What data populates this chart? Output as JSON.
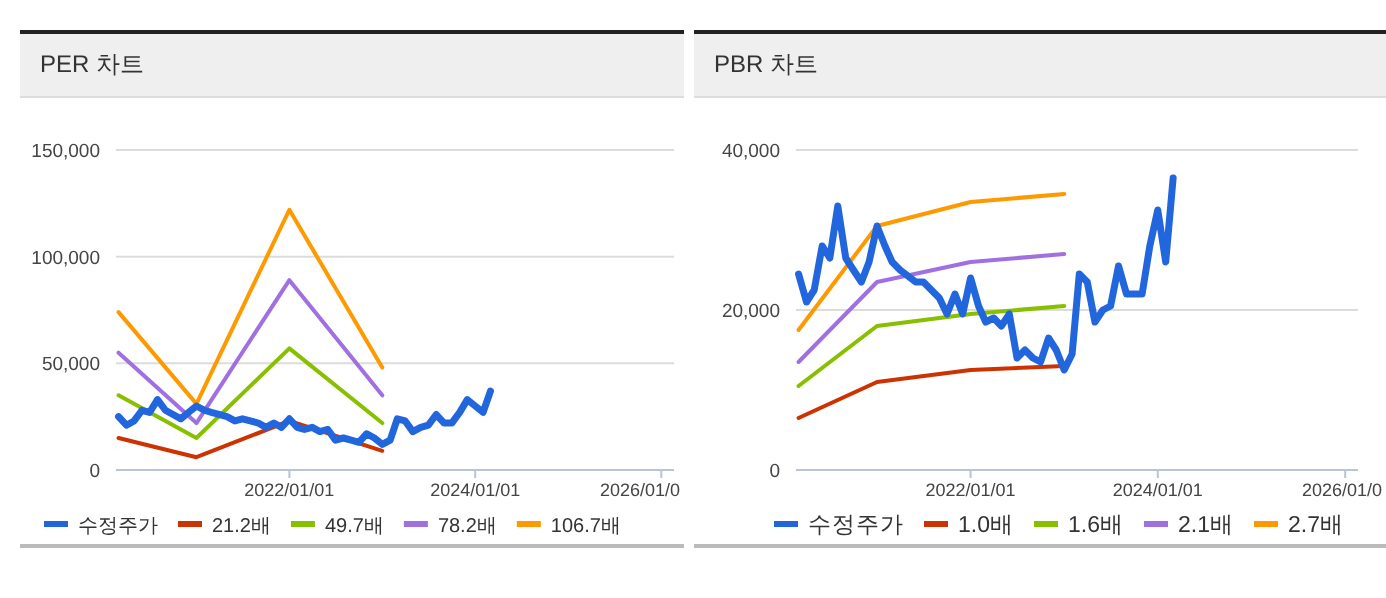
{
  "chart_data": [
    {
      "type": "line",
      "title": "PER 차트",
      "legend": "bottom",
      "grid": "y",
      "xlim": [
        "2020-02-20",
        "2026-02-20"
      ],
      "ylim": [
        0,
        150000
      ],
      "xticks": [
        {
          "value": "2022-01-01",
          "label": "2022/01/01"
        },
        {
          "value": "2024-01-01",
          "label": "2024/01/01"
        },
        {
          "value": "2026-01-01",
          "label": "2026/01/0"
        }
      ],
      "yticks": [
        0,
        {
          "value": 50000,
          "label": "50,000"
        },
        {
          "value": 100000,
          "label": "100,000"
        },
        {
          "value": 150000,
          "label": "150,000"
        }
      ],
      "series": [
        {
          "name": "수정주가",
          "color": "#2266dd",
          "x": [
            "2020-03",
            "2020-04",
            "2020-05",
            "2020-06",
            "2020-07",
            "2020-08",
            "2020-09",
            "2020-10",
            "2020-11",
            "2020-12",
            "2021-01",
            "2021-02",
            "2021-03",
            "2021-05",
            "2021-06",
            "2021-07",
            "2021-09",
            "2021-10",
            "2021-11",
            "2021-12",
            "2022-01",
            "2022-02",
            "2022-03",
            "2022-04",
            "2022-05",
            "2022-06",
            "2022-07",
            "2022-08",
            "2022-09",
            "2022-10",
            "2022-11",
            "2022-12",
            "2023-01",
            "2023-02",
            "2023-03",
            "2023-04",
            "2023-05",
            "2023-06",
            "2023-07",
            "2023-08",
            "2023-09",
            "2023-10",
            "2023-11",
            "2023-12",
            "2024-02",
            "2024-03"
          ],
          "values": [
            25000,
            21000,
            23000,
            28000,
            27000,
            33000,
            28000,
            26000,
            24000,
            27000,
            30000,
            28000,
            27000,
            25000,
            23000,
            24000,
            22000,
            20000,
            22000,
            20000,
            24000,
            20000,
            19000,
            20000,
            18000,
            19000,
            14000,
            15000,
            14000,
            13000,
            17000,
            15000,
            12000,
            14000,
            24000,
            23000,
            18000,
            20000,
            21000,
            26000,
            22000,
            22000,
            27000,
            33000,
            27000,
            37000
          ]
        },
        {
          "name": "21.2배",
          "color": "#cc3300",
          "x": [
            "2020-03",
            "2021-01",
            "2022-01",
            "2023-01"
          ],
          "values": [
            15000,
            6000,
            23000,
            9000
          ]
        },
        {
          "name": "49.7배",
          "color": "#88c000",
          "x": [
            "2020-03",
            "2021-01",
            "2022-01",
            "2023-01"
          ],
          "values": [
            35000,
            15000,
            57000,
            22000
          ]
        },
        {
          "name": "78.2배",
          "color": "#a070e0",
          "x": [
            "2020-03",
            "2021-01",
            "2022-01",
            "2023-01"
          ],
          "values": [
            55000,
            22000,
            89000,
            35000
          ]
        },
        {
          "name": "106.7배",
          "color": "#ff9900",
          "x": [
            "2020-03",
            "2021-01",
            "2022-01",
            "2023-01"
          ],
          "values": [
            74000,
            31000,
            122000,
            48000
          ]
        }
      ]
    },
    {
      "type": "line",
      "title": "PBR 차트",
      "legend": "bottom",
      "grid": "y",
      "xlim": [
        "2020-02-20",
        "2026-02-20"
      ],
      "ylim": [
        0,
        40000
      ],
      "xticks": [
        {
          "value": "2022-01-01",
          "label": "2022/01/01"
        },
        {
          "value": "2024-01-01",
          "label": "2024/01/01"
        },
        {
          "value": "2026-01-01",
          "label": "2026/01/0"
        }
      ],
      "yticks": [
        0,
        {
          "value": 20000,
          "label": "20,000"
        },
        {
          "value": 40000,
          "label": "40,000"
        }
      ],
      "series": [
        {
          "name": "수정주가",
          "color": "#2266dd",
          "x": [
            "2020-03",
            "2020-04",
            "2020-05",
            "2020-06",
            "2020-07",
            "2020-08",
            "2020-09",
            "2020-10",
            "2020-11",
            "2020-12",
            "2021-01",
            "2021-02",
            "2021-03",
            "2021-04",
            "2021-06",
            "2021-07",
            "2021-08",
            "2021-09",
            "2021-10",
            "2021-11",
            "2021-12",
            "2022-01",
            "2022-02",
            "2022-03",
            "2022-04",
            "2022-05",
            "2022-06",
            "2022-07",
            "2022-08",
            "2022-09",
            "2022-10",
            "2022-11",
            "2022-12",
            "2023-01",
            "2023-02",
            "2023-03",
            "2023-04",
            "2023-05",
            "2023-06",
            "2023-07",
            "2023-08",
            "2023-09",
            "2023-10",
            "2023-11",
            "2023-12",
            "2024-01",
            "2024-02",
            "2024-03"
          ],
          "values": [
            24500,
            21000,
            22500,
            28000,
            26500,
            33000,
            26500,
            25000,
            23500,
            26000,
            30500,
            28000,
            26000,
            25000,
            23500,
            23500,
            22500,
            21500,
            19500,
            22000,
            19500,
            24000,
            20500,
            18500,
            19000,
            18000,
            19500,
            14000,
            15000,
            14000,
            13500,
            16500,
            15000,
            12500,
            14500,
            24500,
            23500,
            18500,
            20000,
            20500,
            25500,
            22000,
            22000,
            22000,
            28000,
            32500,
            26000,
            36500
          ]
        },
        {
          "name": "1.0배",
          "color": "#cc3300",
          "x": [
            "2020-03",
            "2021-01",
            "2022-01",
            "2023-01"
          ],
          "values": [
            6500,
            11000,
            12500,
            13000
          ]
        },
        {
          "name": "1.6배",
          "color": "#88c000",
          "x": [
            "2020-03",
            "2021-01",
            "2022-01",
            "2023-01"
          ],
          "values": [
            10500,
            18000,
            19500,
            20500
          ]
        },
        {
          "name": "2.1배",
          "color": "#a070e0",
          "x": [
            "2020-03",
            "2021-01",
            "2022-01",
            "2023-01"
          ],
          "values": [
            13500,
            23500,
            26000,
            27000
          ]
        },
        {
          "name": "2.7배",
          "color": "#ff9900",
          "x": [
            "2020-03",
            "2021-01",
            "2022-01",
            "2023-01"
          ],
          "values": [
            17500,
            30500,
            33500,
            34500
          ]
        }
      ]
    }
  ]
}
